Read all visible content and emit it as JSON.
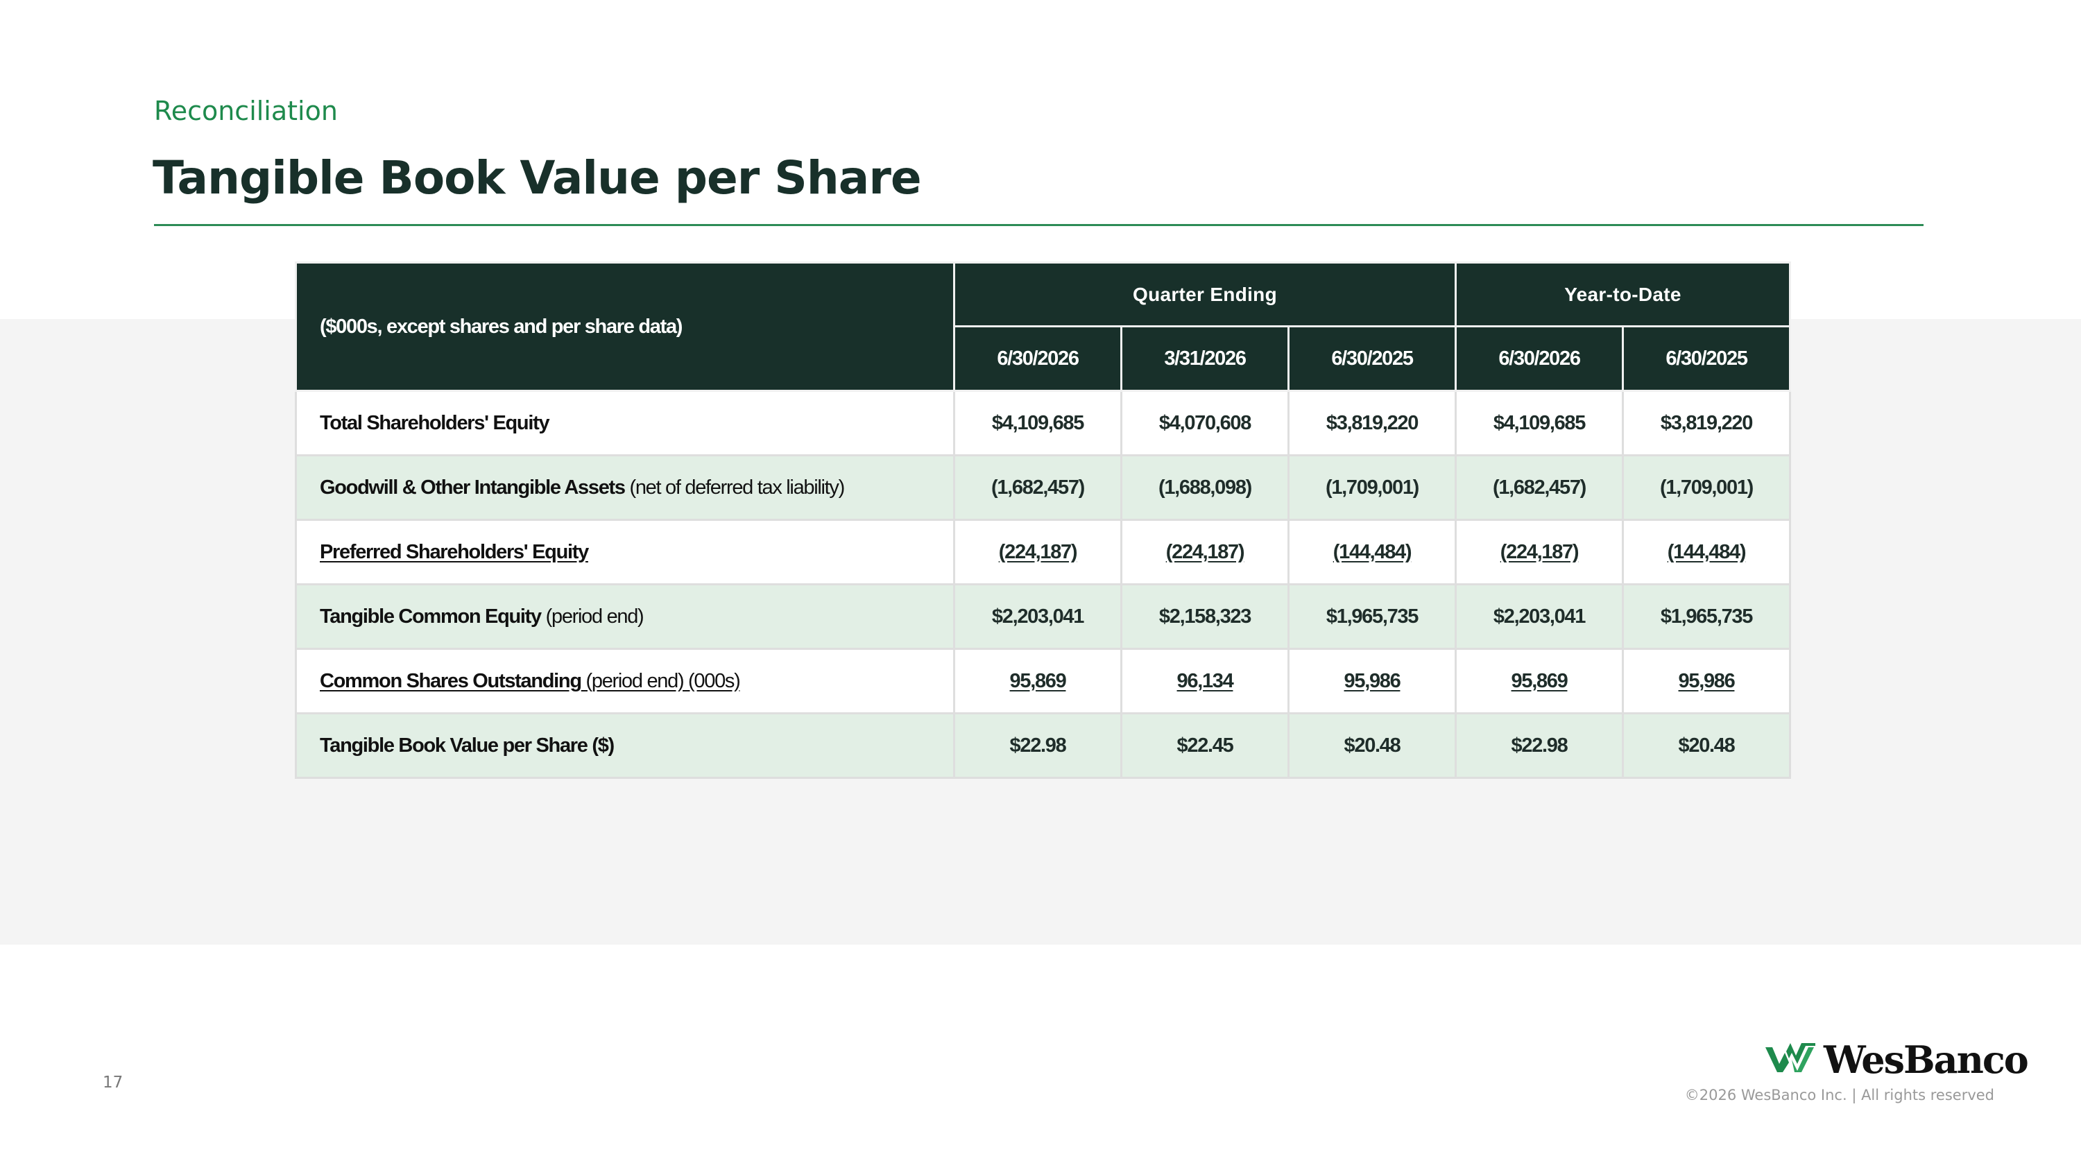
{
  "header": {
    "eyebrow": "Reconciliation",
    "title": "Tangible Book Value per Share"
  },
  "table": {
    "corner_label": "($000s, except shares and per share data)",
    "groups": [
      "Quarter Ending",
      "Year-to-Date"
    ],
    "dates": [
      "6/30/2026",
      "3/31/2026",
      "6/30/2025",
      "6/30/2026",
      "6/30/2025"
    ],
    "rows": [
      {
        "label": "Total Shareholders' Equity",
        "note": "",
        "values": [
          "$4,109,685",
          "$4,070,608",
          "$3,819,220",
          "$4,109,685",
          "$3,819,220"
        ]
      },
      {
        "label": "Goodwill & Other Intangible Assets",
        "note": "(net of deferred tax liability)",
        "values": [
          "(1,682,457)",
          "(1,688,098)",
          "(1,709,001)",
          "(1,682,457)",
          "(1,709,001)"
        ]
      },
      {
        "label": "Preferred Shareholders' Equity",
        "note": "",
        "values": [
          "(224,187)",
          "(224,187)",
          "(144,484)",
          "(224,187)",
          "(144,484)"
        ]
      },
      {
        "label": "Tangible Common Equity",
        "note": "(period end)",
        "values": [
          "$2,203,041",
          "$2,158,323",
          "$1,965,735",
          "$2,203,041",
          "$1,965,735"
        ]
      },
      {
        "label": "Common Shares Outstanding",
        "note": "(period end) (000s)",
        "values": [
          "95,869",
          "96,134",
          "95,986",
          "95,869",
          "95,986"
        ]
      },
      {
        "label": "Tangible Book Value per Share ($)",
        "note": "",
        "values": [
          "$22.98",
          "$22.45",
          "$20.48",
          "$22.98",
          "$20.48"
        ]
      }
    ]
  },
  "footer": {
    "page_number": "17",
    "logo_text": "WesBanco",
    "copyright": "©2026 WesBanco Inc.  |  All rights reserved"
  },
  "colors": {
    "brand_green": "#1e8a4c",
    "header_dark": "#18302a",
    "row_tint": "#e2efe5"
  },
  "icons": {
    "logo_mark": "wesbanco-double-w-icon"
  }
}
